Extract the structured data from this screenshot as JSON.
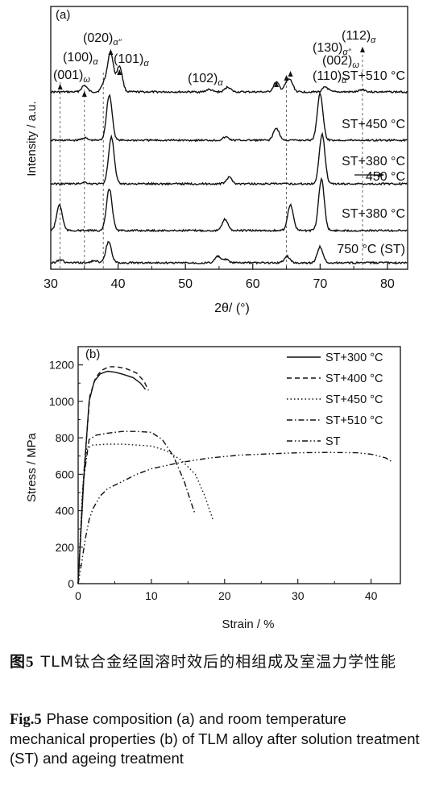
{
  "chart_data": [
    {
      "type": "line",
      "panel_label": "(a)",
      "xlabel": "2θ/ (°)",
      "ylabel": "Intensity / a.u.",
      "xlim": [
        30,
        83
      ],
      "xticks": [
        30,
        40,
        50,
        60,
        70,
        80
      ],
      "tick_labels": [
        "30",
        "40",
        "50",
        "60",
        "70",
        "80"
      ],
      "series": [
        {
          "name": "ST+510 °C",
          "peaks": [
            [
              35.0,
              8
            ],
            [
              38.0,
              12
            ],
            [
              38.9,
              48
            ],
            [
              40.2,
              32
            ],
            [
              53.5,
              3
            ],
            [
              56.3,
              6
            ],
            [
              63.5,
              12
            ],
            [
              65.0,
              8
            ],
            [
              65.6,
              12
            ],
            [
              70.8,
              6
            ],
            [
              76.3,
              3
            ]
          ]
        },
        {
          "name": "ST+450 °C",
          "peaks": [
            [
              35.0,
              3
            ],
            [
              38.7,
              56
            ],
            [
              56.0,
              4
            ],
            [
              63.5,
              15
            ],
            [
              70.0,
              58
            ]
          ]
        },
        {
          "name": "ST+380 °C → 450 °C",
          "peaks": [
            [
              35.0,
              2
            ],
            [
              39.0,
              58
            ],
            [
              56.5,
              8
            ],
            [
              70.3,
              62
            ]
          ]
        },
        {
          "name": "ST+380 °C",
          "peaks": [
            [
              31.3,
              32
            ],
            [
              38.7,
              52
            ],
            [
              55.9,
              14
            ],
            [
              65.6,
              32
            ],
            [
              70.2,
              64
            ]
          ]
        },
        {
          "name": "750 °C (ST)",
          "peaks": [
            [
              31.4,
              4
            ],
            [
              36.5,
              3
            ],
            [
              38.6,
              26
            ],
            [
              54.8,
              8
            ],
            [
              56.0,
              4
            ],
            [
              65.1,
              8
            ],
            [
              70.0,
              20
            ]
          ]
        }
      ],
      "annotations": [
        {
          "text": "(001)",
          "sub": "ω",
          "x": 31.4
        },
        {
          "text": "(100)",
          "sub": "α",
          "x": 35.0
        },
        {
          "text": "(020)",
          "sub": "α\"",
          "x": 38.0
        },
        {
          "text": "(101)",
          "sub": "α",
          "x": 40.2
        },
        {
          "text": "(102)",
          "sub": "α",
          "x": 56.3
        },
        {
          "text": "(110)",
          "sub": "α",
          "x": 63.5
        },
        {
          "text": "(130)",
          "sub": "α\"",
          "x": 65.0
        },
        {
          "text": "(002)",
          "sub": "ω",
          "x": 65.6
        },
        {
          "text": "(112)",
          "sub": "α",
          "x": 76.3
        }
      ],
      "grid": false
    },
    {
      "type": "line",
      "panel_label": "(b)",
      "xlabel": "Strain / %",
      "ylabel": "Stress / MPa",
      "xlim": [
        0,
        44
      ],
      "ylim": [
        0,
        1300
      ],
      "xticks": [
        0,
        10,
        20,
        30,
        40
      ],
      "yticks": [
        0,
        200,
        400,
        600,
        800,
        1000,
        1200
      ],
      "legend": "top-right",
      "grid": false,
      "series": [
        {
          "name": "ST+300 °C",
          "dash": "solid",
          "points": [
            [
              0,
              0
            ],
            [
              0.8,
              600
            ],
            [
              1.5,
              1000
            ],
            [
              2.2,
              1110
            ],
            [
              3,
              1150
            ],
            [
              4,
              1165
            ],
            [
              5,
              1160
            ],
            [
              6,
              1150
            ],
            [
              7.5,
              1130
            ],
            [
              8.5,
              1100
            ],
            [
              9.2,
              1065
            ]
          ]
        },
        {
          "name": "ST+400 °C",
          "dash": "dashed",
          "points": [
            [
              0,
              0
            ],
            [
              0.8,
              620
            ],
            [
              1.6,
              1030
            ],
            [
              2.4,
              1130
            ],
            [
              3.2,
              1170
            ],
            [
              4.2,
              1190
            ],
            [
              5.2,
              1190
            ],
            [
              6.5,
              1180
            ],
            [
              8,
              1155
            ],
            [
              9,
              1110
            ],
            [
              9.6,
              1060
            ]
          ]
        },
        {
          "name": "ST+450 °C",
          "dash": "dotted",
          "points": [
            [
              0,
              0
            ],
            [
              0.6,
              520
            ],
            [
              1.2,
              740
            ],
            [
              2,
              760
            ],
            [
              4,
              765
            ],
            [
              6,
              765
            ],
            [
              8,
              760
            ],
            [
              10,
              755
            ],
            [
              12,
              730
            ],
            [
              14,
              680
            ],
            [
              16,
              600
            ],
            [
              17.3,
              480
            ],
            [
              18.4,
              350
            ]
          ]
        },
        {
          "name": "ST+510 °C",
          "dash": "dashdot",
          "points": [
            [
              0,
              0
            ],
            [
              0.7,
              560
            ],
            [
              1.5,
              790
            ],
            [
              2.5,
              815
            ],
            [
              4,
              825
            ],
            [
              6,
              835
            ],
            [
              8,
              835
            ],
            [
              10,
              830
            ],
            [
              11.5,
              790
            ],
            [
              13,
              700
            ],
            [
              14.5,
              560
            ],
            [
              15.3,
              460
            ],
            [
              15.9,
              390
            ]
          ]
        },
        {
          "name": "ST",
          "dash": "dashdotdot",
          "points": [
            [
              0,
              0
            ],
            [
              0.5,
              120
            ],
            [
              1,
              250
            ],
            [
              1.5,
              350
            ],
            [
              2,
              410
            ],
            [
              3,
              480
            ],
            [
              4,
              520
            ],
            [
              6,
              560
            ],
            [
              8,
              600
            ],
            [
              10,
              630
            ],
            [
              14,
              665
            ],
            [
              18,
              690
            ],
            [
              22,
              705
            ],
            [
              26,
              712
            ],
            [
              30,
              718
            ],
            [
              34,
              720
            ],
            [
              38,
              718
            ],
            [
              40,
              710
            ],
            [
              42,
              690
            ],
            [
              43,
              665
            ]
          ]
        }
      ]
    }
  ],
  "caption_cn": {
    "label": "图5",
    "text": "TLM钛合金经固溶时效后的相组成及室温力学性能"
  },
  "caption_en": {
    "label": "Fig.5",
    "text": "Phase composition (a) and room temperature mechanical properties (b) of TLM alloy after solution treatment (ST) and ageing treatment"
  }
}
